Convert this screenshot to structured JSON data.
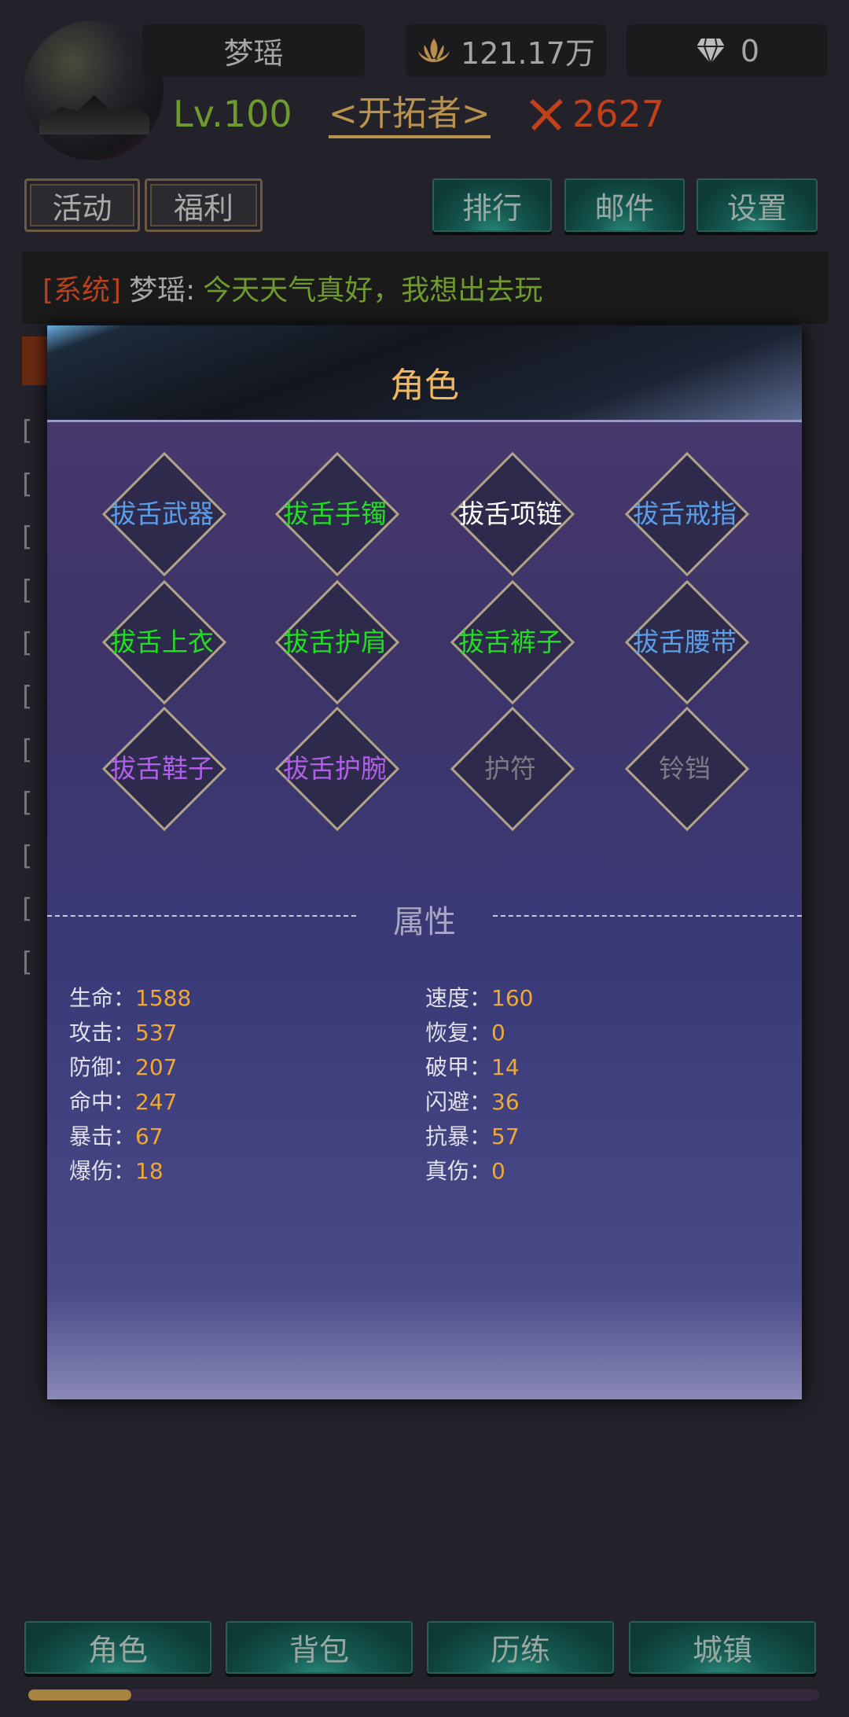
{
  "player": {
    "name": "梦瑶",
    "gold": "121.17万",
    "diamonds": "0",
    "level": "Lv.100",
    "title": "<开拓者>",
    "power": "2627"
  },
  "top_buttons": {
    "activity": "活动",
    "welfare": "福利",
    "rank": "排行",
    "mail": "邮件",
    "settings": "设置"
  },
  "chat": {
    "channel": "[系统]",
    "sender": "梦瑶:",
    "message": "今天天气真好，我想出去玩"
  },
  "background_list": {
    "bracket": "["
  },
  "modal": {
    "title": "角色",
    "equipment": [
      {
        "label": "拔舌武器",
        "color": "#5a9ee8"
      },
      {
        "label": "拔舌手镯",
        "color": "#22dd22"
      },
      {
        "label": "拔舌项链",
        "color": "#ffffff"
      },
      {
        "label": "拔舌戒指",
        "color": "#5a9ee8"
      },
      {
        "label": "拔舌上衣",
        "color": "#22dd22"
      },
      {
        "label": "拔舌护肩",
        "color": "#22dd22"
      },
      {
        "label": "拔舌裤子",
        "color": "#22dd22"
      },
      {
        "label": "拔舌腰带",
        "color": "#5a9ee8"
      },
      {
        "label": "拔舌鞋子",
        "color": "#b060e8"
      },
      {
        "label": "拔舌护腕",
        "color": "#b060e8"
      },
      {
        "label": "护符",
        "color": "#7c7c84"
      },
      {
        "label": "铃铛",
        "color": "#7c7c84"
      }
    ],
    "section_title": "属性",
    "stats_left": [
      {
        "label": "生命：",
        "value": "1588"
      },
      {
        "label": "攻击：",
        "value": "537"
      },
      {
        "label": "防御：",
        "value": "207"
      },
      {
        "label": "命中：",
        "value": "247"
      },
      {
        "label": "暴击：",
        "value": "67"
      },
      {
        "label": "爆伤：",
        "value": "18"
      }
    ],
    "stats_right": [
      {
        "label": "速度：",
        "value": "160"
      },
      {
        "label": "恢复：",
        "value": "0"
      },
      {
        "label": "破甲：",
        "value": "14"
      },
      {
        "label": "闪避：",
        "value": "36"
      },
      {
        "label": "抗暴：",
        "value": "57"
      },
      {
        "label": "真伤：",
        "value": "0"
      }
    ]
  },
  "bottom_nav": [
    "角色",
    "背包",
    "历练",
    "城镇"
  ],
  "progress": {
    "percent": 13,
    "color": "#a7853e"
  }
}
